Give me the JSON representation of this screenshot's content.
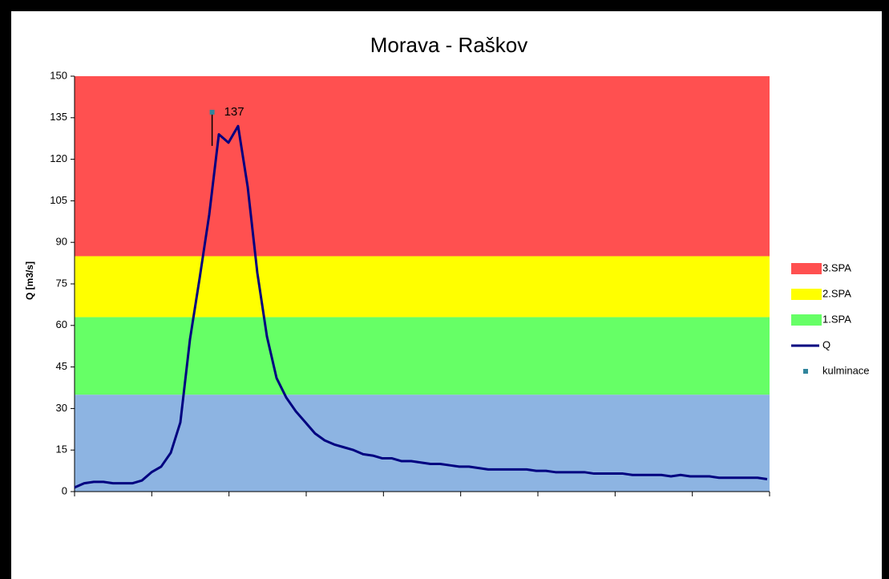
{
  "chart_data": {
    "type": "line",
    "title": "Morava - Raškov",
    "ylabel": "Q [m3/s]",
    "ylim": [
      0,
      150
    ],
    "yticks": [
      0,
      15,
      30,
      45,
      60,
      75,
      90,
      105,
      120,
      135,
      150
    ],
    "bands": [
      {
        "from": 0,
        "to": 35,
        "color": "#8db4e2"
      },
      {
        "name": "1.SPA",
        "from": 35,
        "to": 63,
        "color": "#66ff66"
      },
      {
        "name": "2.SPA",
        "from": 63,
        "to": 85,
        "color": "#ffff00"
      },
      {
        "name": "3.SPA",
        "from": 85,
        "to": 150,
        "color": "#ff5050"
      }
    ],
    "series": [
      {
        "name": "Q",
        "color": "#000080",
        "values": [
          1.5,
          3,
          3.5,
          3.5,
          3,
          3,
          3,
          4,
          7,
          9,
          14,
          25,
          55,
          77,
          100,
          129,
          126,
          132,
          110,
          79,
          56,
          41,
          34,
          29,
          25,
          21,
          18.5,
          17,
          16,
          15,
          13.5,
          13,
          12,
          12,
          11,
          11,
          10.5,
          10,
          10,
          9.5,
          9,
          9,
          8.5,
          8,
          8,
          8,
          8,
          8,
          7.5,
          7.5,
          7,
          7,
          7,
          7,
          6.5,
          6.5,
          6.5,
          6.5,
          6,
          6,
          6,
          6,
          5.5,
          6,
          5.5,
          5.5,
          5.5,
          5,
          5,
          5,
          5,
          5,
          4.5
        ]
      },
      {
        "name": "kulminace",
        "color": "#31859c",
        "x": 14.3,
        "value": 137
      }
    ]
  }
}
